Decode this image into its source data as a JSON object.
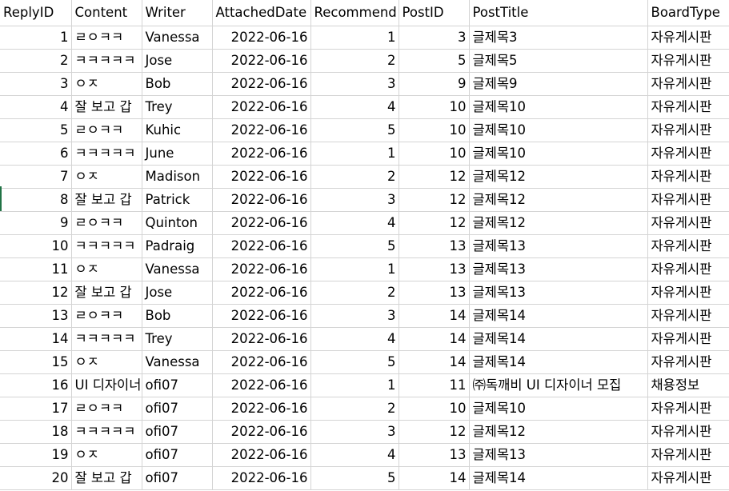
{
  "sheet": {
    "columns": [
      "ReplyID",
      "Content",
      "Writer",
      "AttachedDate",
      "Recommend",
      "PostID",
      "PostTitle",
      "BoardType"
    ],
    "rows": [
      [
        "1",
        "ㄹㅇㅋㅋ",
        "Vanessa",
        "2022-06-16",
        "1",
        "3",
        "글제목3",
        "자유게시판"
      ],
      [
        "2",
        "ㅋㅋㅋㅋㅋ",
        "Jose",
        "2022-06-16",
        "2",
        "5",
        "글제목5",
        "자유게시판"
      ],
      [
        "3",
        "ㅇㅈ",
        "Bob",
        "2022-06-16",
        "3",
        "9",
        "글제목9",
        "자유게시판"
      ],
      [
        "4",
        "잘 보고 갑",
        "Trey",
        "2022-06-16",
        "4",
        "10",
        "글제목10",
        "자유게시판"
      ],
      [
        "5",
        "ㄹㅇㅋㅋ",
        "Kuhic",
        "2022-06-16",
        "5",
        "10",
        "글제목10",
        "자유게시판"
      ],
      [
        "6",
        "ㅋㅋㅋㅋㅋ",
        "June",
        "2022-06-16",
        "1",
        "10",
        "글제목10",
        "자유게시판"
      ],
      [
        "7",
        "ㅇㅈ",
        "Madison",
        "2022-06-16",
        "2",
        "12",
        "글제목12",
        "자유게시판"
      ],
      [
        "8",
        "잘 보고 갑",
        "Patrick",
        "2022-06-16",
        "3",
        "12",
        "글제목12",
        "자유게시판"
      ],
      [
        "9",
        "ㄹㅇㅋㅋ",
        "Quinton",
        "2022-06-16",
        "4",
        "12",
        "글제목12",
        "자유게시판"
      ],
      [
        "10",
        "ㅋㅋㅋㅋㅋ",
        "Padraig",
        "2022-06-16",
        "5",
        "13",
        "글제목13",
        "자유게시판"
      ],
      [
        "11",
        "ㅇㅈ",
        "Vanessa",
        "2022-06-16",
        "1",
        "13",
        "글제목13",
        "자유게시판"
      ],
      [
        "12",
        "잘 보고 갑",
        "Jose",
        "2022-06-16",
        "2",
        "13",
        "글제목13",
        "자유게시판"
      ],
      [
        "13",
        "ㄹㅇㅋㅋ",
        "Bob",
        "2022-06-16",
        "3",
        "14",
        "글제목14",
        "자유게시판"
      ],
      [
        "14",
        "ㅋㅋㅋㅋㅋ",
        "Trey",
        "2022-06-16",
        "4",
        "14",
        "글제목14",
        "자유게시판"
      ],
      [
        "15",
        "ㅇㅈ",
        "Vanessa",
        "2022-06-16",
        "5",
        "14",
        "글제목14",
        "자유게시판"
      ],
      [
        "16",
        "UI 디자이너",
        "ofi07",
        "2022-06-16",
        "1",
        "11",
        "㈜독깨비 UI 디자이너 모집",
        "채용정보"
      ],
      [
        "17",
        "ㄹㅇㅋㅋ",
        "ofi07",
        "2022-06-16",
        "2",
        "10",
        "글제목10",
        "자유게시판"
      ],
      [
        "18",
        "ㅋㅋㅋㅋㅋ",
        "ofi07",
        "2022-06-16",
        "3",
        "12",
        "글제목12",
        "자유게시판"
      ],
      [
        "19",
        "ㅇㅈ",
        "ofi07",
        "2022-06-16",
        "4",
        "13",
        "글제목13",
        "자유게시판"
      ],
      [
        "20",
        "잘 보고 갑",
        "ofi07",
        "2022-06-16",
        "5",
        "14",
        "글제목14",
        "자유게시판"
      ]
    ]
  }
}
